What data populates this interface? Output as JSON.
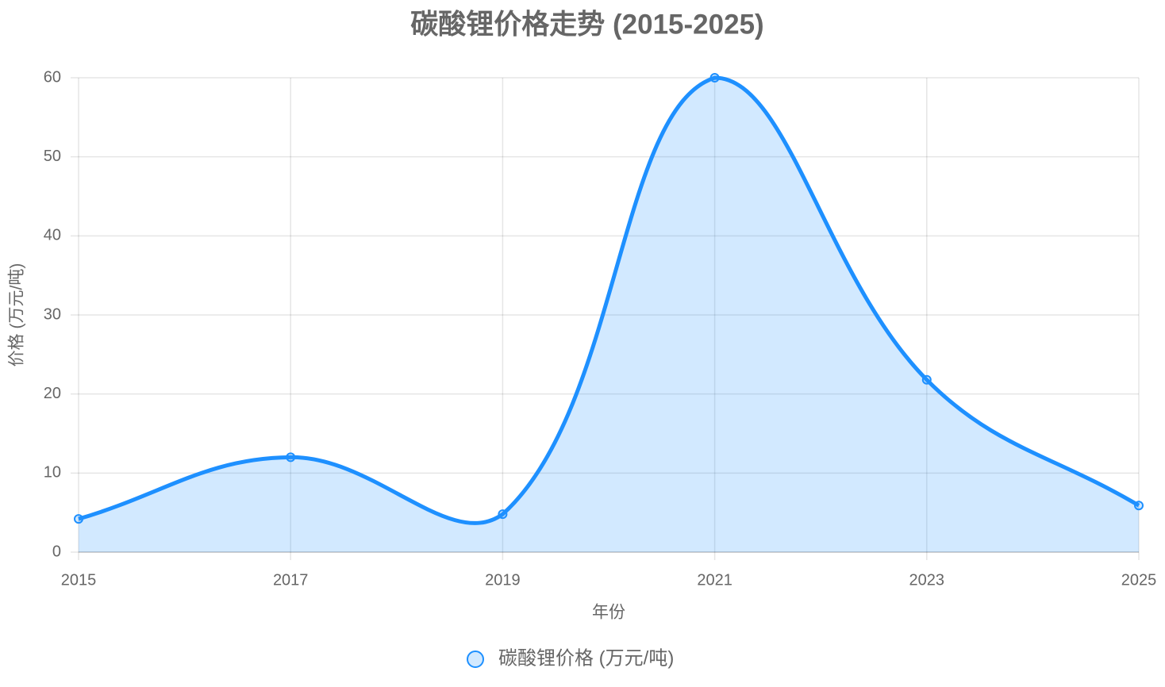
{
  "chart_data": {
    "type": "line",
    "title": "碳酸锂价格走势 (2015-2025)",
    "categories": [
      "2015",
      "2017",
      "2019",
      "2021",
      "2023",
      "2025"
    ],
    "series": [
      {
        "name": "碳酸锂价格 (万元/吨)",
        "color": "#1e90ff",
        "values": [
          4.2,
          12,
          4.8,
          60,
          21.8,
          5.9
        ]
      }
    ],
    "xlabel": "年份",
    "ylabel": "价格 (万元/吨)",
    "ylim": [
      0,
      60
    ],
    "yticks": [
      0,
      10,
      20,
      30,
      40,
      50,
      60
    ],
    "grid": true,
    "fill": true,
    "legend": "bottom"
  }
}
